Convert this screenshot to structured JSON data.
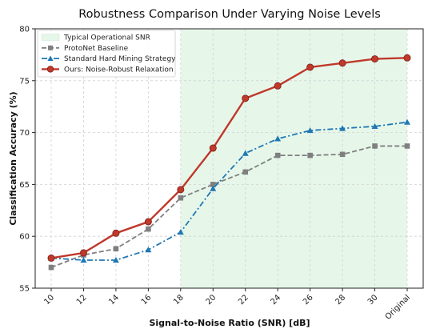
{
  "chart_data": {
    "type": "line",
    "title": "Robustness Comparison Under Varying Noise Levels",
    "xlabel": "Signal-to-Noise Ratio (SNR) [dB]",
    "ylabel": "Classification Accuracy (%)",
    "categories": [
      "10",
      "12",
      "14",
      "16",
      "18",
      "20",
      "22",
      "24",
      "26",
      "28",
      "30",
      "Original"
    ],
    "ylim": [
      55,
      80
    ],
    "yticks": [
      55,
      60,
      65,
      70,
      75,
      80
    ],
    "grid": true,
    "legend_position": "top-left",
    "shaded_region": {
      "label": "Typical Operational SNR",
      "from": "18",
      "to": "Original",
      "color": "#e6f7ea"
    },
    "series": [
      {
        "name": "ProtoNet Baseline",
        "color": "#7f7f7f",
        "marker": "square",
        "dash": "6,3",
        "width": 1.8,
        "values": [
          57.0,
          58.2,
          58.8,
          60.7,
          63.7,
          65.0,
          66.2,
          67.8,
          67.8,
          67.9,
          68.7,
          68.7
        ]
      },
      {
        "name": "Standard Hard Mining Strategy",
        "color": "#1f77b4",
        "marker": "triangle",
        "dash": "7,3,2,3",
        "width": 1.8,
        "values": [
          57.9,
          57.7,
          57.7,
          58.7,
          60.4,
          64.6,
          68.0,
          69.4,
          70.2,
          70.4,
          70.6,
          71.0
        ]
      },
      {
        "name": "Ours: Noise-Robust Relaxation",
        "color": "#c0392b",
        "marker": "circle",
        "dash": "",
        "width": 2.4,
        "values": [
          57.9,
          58.4,
          60.3,
          61.4,
          64.5,
          68.5,
          73.3,
          74.5,
          76.3,
          76.7,
          77.1,
          77.2
        ]
      }
    ]
  }
}
